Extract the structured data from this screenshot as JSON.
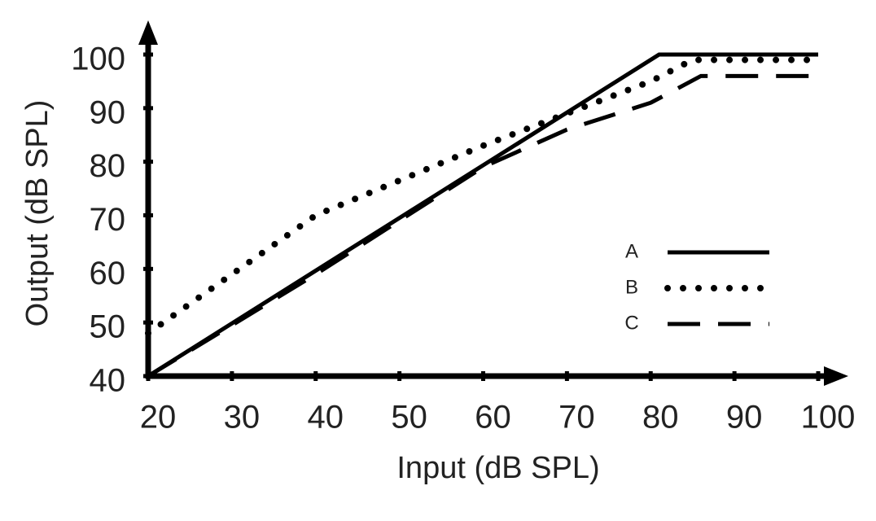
{
  "chart_data": {
    "type": "line",
    "x_label": "Input (dB SPL)",
    "y_label": "Output (dB SPL)",
    "xlim": [
      20,
      100
    ],
    "xticks": [
      20,
      30,
      40,
      50,
      60,
      70,
      80,
      90,
      100
    ],
    "ylim": [
      40,
      100
    ],
    "yticks": [
      40,
      50,
      60,
      70,
      80,
      90,
      100
    ],
    "legend": "right",
    "series": [
      {
        "name": "A",
        "color": "#000000",
        "dash": "solid",
        "x": [
          20,
          81,
          100
        ],
        "values": [
          40,
          100,
          100
        ]
      },
      {
        "name": "B",
        "color": "#000000",
        "dash": "dotted",
        "x": [
          20,
          40,
          60,
          80,
          85,
          100
        ],
        "values": [
          48,
          70,
          83,
          95,
          99,
          99
        ]
      },
      {
        "name": "C",
        "color": "#000000",
        "dash": "dashed",
        "x": [
          20,
          40,
          60,
          70,
          80,
          86,
          100
        ],
        "values": [
          40,
          59,
          79,
          86,
          91,
          96,
          96
        ]
      }
    ]
  }
}
